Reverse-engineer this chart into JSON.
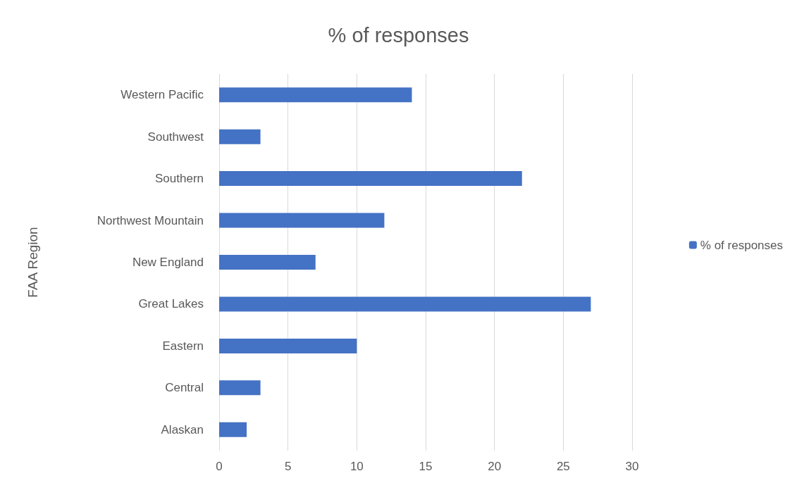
{
  "chart_data": {
    "type": "bar",
    "orientation": "horizontal",
    "title": "% of responses",
    "ylabel": "FAA Region",
    "categories": [
      "Western Pacific",
      "Southwest",
      "Southern",
      "Northwest Mountain",
      "New England",
      "Great Lakes",
      "Eastern",
      "Central",
      "Alaskan"
    ],
    "series": [
      {
        "name": "% of responses",
        "color": "#4472c4",
        "values": [
          14,
          3,
          22,
          12,
          7,
          27,
          10,
          3,
          2
        ]
      }
    ],
    "xlim": [
      0,
      30
    ],
    "xticks": [
      0,
      5,
      10,
      15,
      20,
      25,
      30
    ],
    "grid": "x",
    "legend": "right"
  }
}
